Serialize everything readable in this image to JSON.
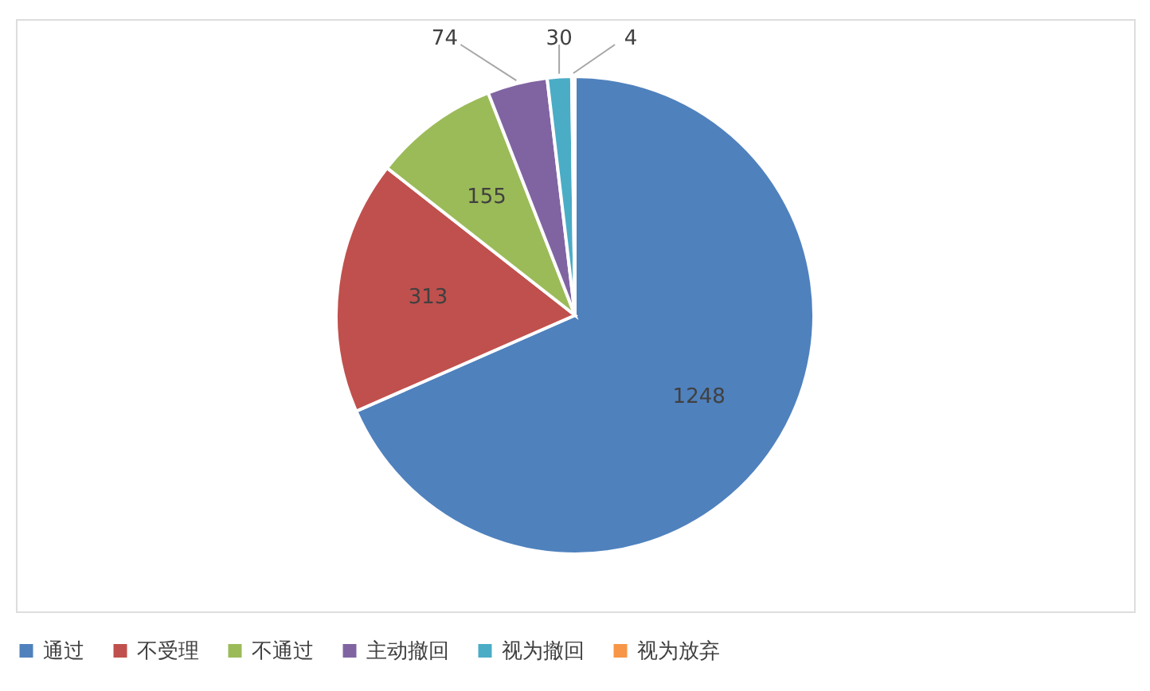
{
  "chart_data": {
    "type": "pie",
    "categories": [
      "通过",
      "不受理",
      "不通过",
      "主动撤回",
      "视为撤回",
      "视为放弃"
    ],
    "values": [
      1248,
      313,
      155,
      74,
      30,
      4
    ],
    "colors": [
      "#4f81bd",
      "#c0504d",
      "#9bbb59",
      "#8064a2",
      "#4bacc6",
      "#f79646"
    ],
    "data_labels": true,
    "legend": "bottom"
  }
}
